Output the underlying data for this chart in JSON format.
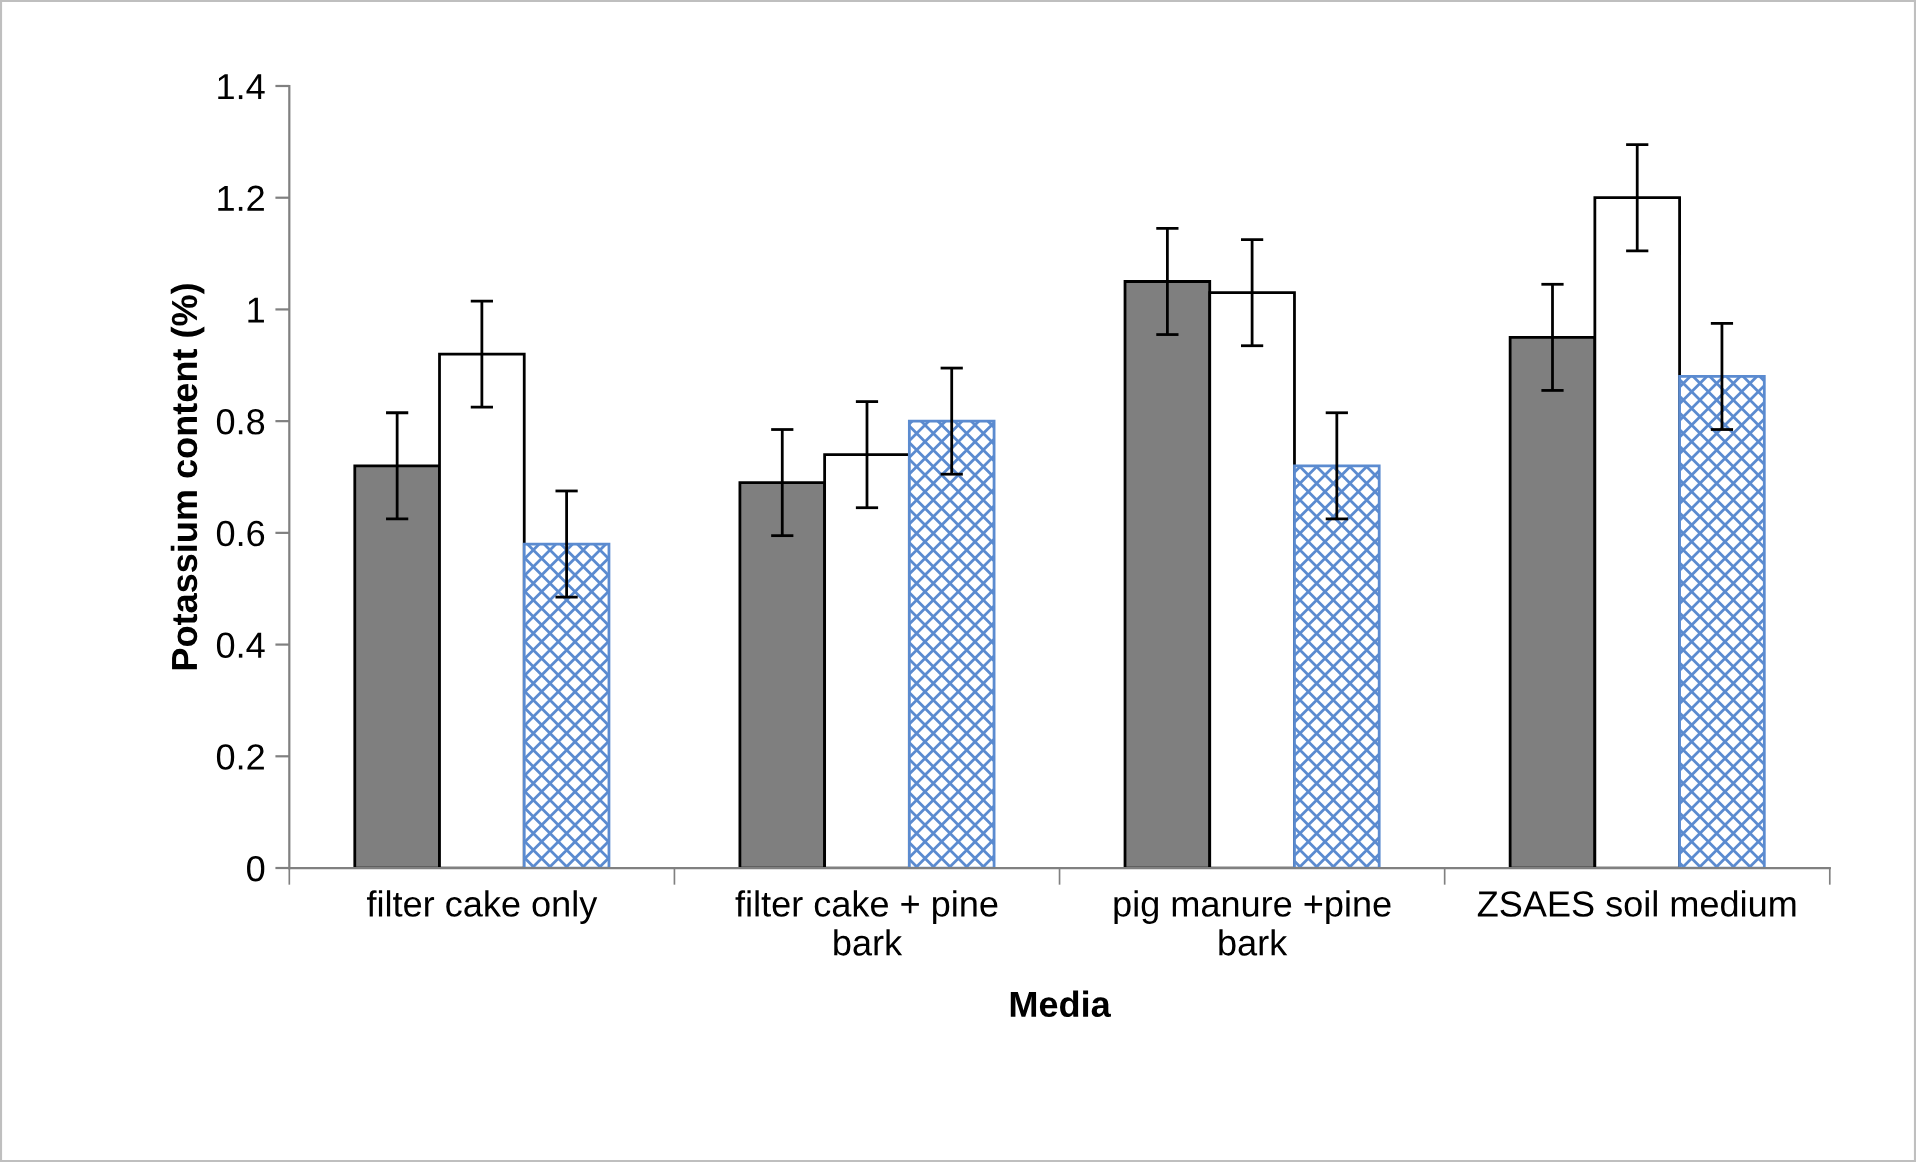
{
  "chart_data": {
    "type": "bar",
    "xlabel": "Media",
    "ylabel": "Potassium content (%)",
    "categories": [
      "filter cake only",
      "filter cake + pine bark",
      "pig manure +pine bark",
      "ZSAES soil medium"
    ],
    "series": [
      {
        "color": "#7f7f7f",
        "values": [
          0.72,
          0.69,
          1.05,
          0.95
        ],
        "errors": [
          0.095,
          0.095,
          0.095,
          0.095
        ]
      },
      {
        "color": "#ffffff",
        "values": [
          0.92,
          0.74,
          1.03,
          1.2
        ],
        "errors": [
          0.095,
          0.095,
          0.095,
          0.095
        ]
      },
      {
        "color": "#5b8bd0",
        "values": [
          0.58,
          0.8,
          0.72,
          0.88
        ],
        "errors": [
          0.095,
          0.095,
          0.095,
          0.095
        ]
      }
    ],
    "ylim": [
      0,
      1.4
    ],
    "yticks": [
      0,
      0.2,
      0.4,
      0.6,
      0.8,
      1,
      1.2,
      1.4
    ],
    "grid": false,
    "legend": false
  }
}
